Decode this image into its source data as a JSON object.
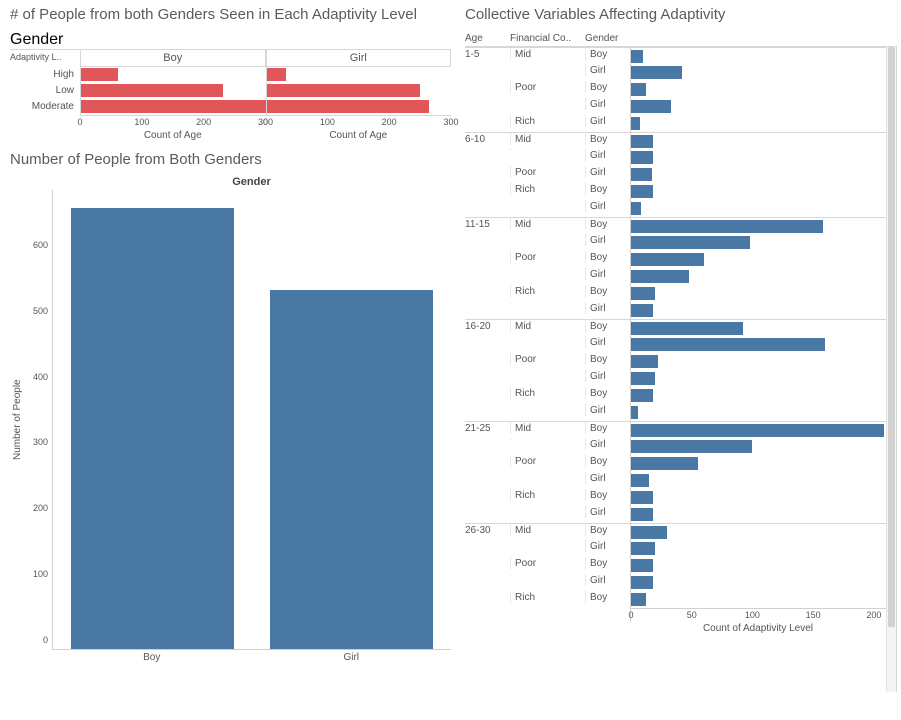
{
  "colors": {
    "bar_blue": "#4a78a4",
    "bar_red": "#e15759",
    "grid": "#d7d7d7",
    "text": "#555555",
    "title": "#5b5b5b",
    "background": "#ffffff"
  },
  "panel1": {
    "title": "# of People from both Genders Seen in Each Adaptivity Level",
    "facet_title": "Gender",
    "facets": [
      "Boy",
      "Girl"
    ],
    "row_header_title": "Adaptivity L..",
    "categories": [
      "High",
      "Low",
      "Moderate"
    ],
    "x_label": "Count of Age",
    "x_max": 300,
    "x_ticks": [
      0,
      100,
      200,
      300
    ],
    "data": {
      "Boy": {
        "High": 60,
        "Low": 231,
        "Moderate": 367
      },
      "Girl": {
        "High": 32,
        "Low": 249,
        "Moderate": 265
      }
    },
    "bar_color": "#e15759"
  },
  "panel2": {
    "title": "Number of People from Both Genders",
    "facet_title": "Gender",
    "y_label": "Number of People",
    "y_max": 700,
    "y_ticks": [
      0,
      100,
      200,
      300,
      400,
      500,
      600
    ],
    "categories": [
      "Boy",
      "Girl"
    ],
    "values": {
      "Boy": 670,
      "Girl": 545
    },
    "bar_color": "#4a78a4"
  },
  "panel3": {
    "title": "Collective Variables Affecting Adaptivity",
    "col_headers": [
      "Age",
      "Financial Co..",
      "Gender"
    ],
    "x_label": "Count of Adaptivity Level",
    "x_max": 210,
    "x_ticks": [
      0,
      50,
      100,
      150,
      200
    ],
    "bar_color": "#4a78a4",
    "rows": [
      {
        "age": "1-5",
        "fin": "Mid",
        "gen": "Boy",
        "val": 10
      },
      {
        "age": "",
        "fin": "",
        "gen": "Girl",
        "val": 42
      },
      {
        "age": "",
        "fin": "Poor",
        "gen": "Boy",
        "val": 12
      },
      {
        "age": "",
        "fin": "",
        "gen": "Girl",
        "val": 33
      },
      {
        "age": "",
        "fin": "Rich",
        "gen": "Girl",
        "val": 7
      },
      {
        "age": "6-10",
        "fin": "Mid",
        "gen": "Boy",
        "val": 18
      },
      {
        "age": "",
        "fin": "",
        "gen": "Girl",
        "val": 18
      },
      {
        "age": "",
        "fin": "Poor",
        "gen": "Girl",
        "val": 17
      },
      {
        "age": "",
        "fin": "Rich",
        "gen": "Boy",
        "val": 18
      },
      {
        "age": "",
        "fin": "",
        "gen": "Girl",
        "val": 8
      },
      {
        "age": "11-15",
        "fin": "Mid",
        "gen": "Boy",
        "val": 158
      },
      {
        "age": "",
        "fin": "",
        "gen": "Girl",
        "val": 98
      },
      {
        "age": "",
        "fin": "Poor",
        "gen": "Boy",
        "val": 60
      },
      {
        "age": "",
        "fin": "",
        "gen": "Girl",
        "val": 48
      },
      {
        "age": "",
        "fin": "Rich",
        "gen": "Boy",
        "val": 20
      },
      {
        "age": "",
        "fin": "",
        "gen": "Girl",
        "val": 18
      },
      {
        "age": "16-20",
        "fin": "Mid",
        "gen": "Boy",
        "val": 92
      },
      {
        "age": "",
        "fin": "",
        "gen": "Girl",
        "val": 160
      },
      {
        "age": "",
        "fin": "Poor",
        "gen": "Boy",
        "val": 22
      },
      {
        "age": "",
        "fin": "",
        "gen": "Girl",
        "val": 20
      },
      {
        "age": "",
        "fin": "Rich",
        "gen": "Boy",
        "val": 18
      },
      {
        "age": "",
        "fin": "",
        "gen": "Girl",
        "val": 6
      },
      {
        "age": "21-25",
        "fin": "Mid",
        "gen": "Boy",
        "val": 208
      },
      {
        "age": "",
        "fin": "",
        "gen": "Girl",
        "val": 100
      },
      {
        "age": "",
        "fin": "Poor",
        "gen": "Boy",
        "val": 55
      },
      {
        "age": "",
        "fin": "",
        "gen": "Girl",
        "val": 15
      },
      {
        "age": "",
        "fin": "Rich",
        "gen": "Boy",
        "val": 18
      },
      {
        "age": "",
        "fin": "",
        "gen": "Girl",
        "val": 18
      },
      {
        "age": "26-30",
        "fin": "Mid",
        "gen": "Boy",
        "val": 30
      },
      {
        "age": "",
        "fin": "",
        "gen": "Girl",
        "val": 20
      },
      {
        "age": "",
        "fin": "Poor",
        "gen": "Boy",
        "val": 18
      },
      {
        "age": "",
        "fin": "",
        "gen": "Girl",
        "val": 18
      },
      {
        "age": "",
        "fin": "Rich",
        "gen": "Boy",
        "val": 12
      }
    ]
  }
}
